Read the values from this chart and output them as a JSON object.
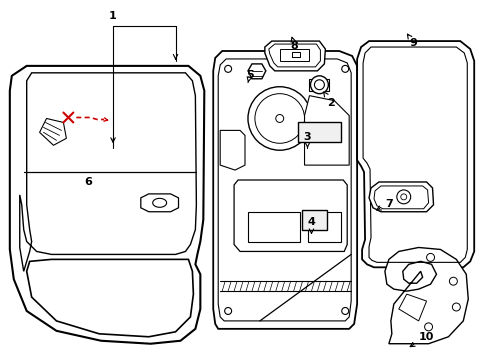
{
  "background_color": "#ffffff",
  "line_color": "#000000",
  "red_color": "#cc0000",
  "label_fontsize": 8,
  "label_fontweight": "bold"
}
